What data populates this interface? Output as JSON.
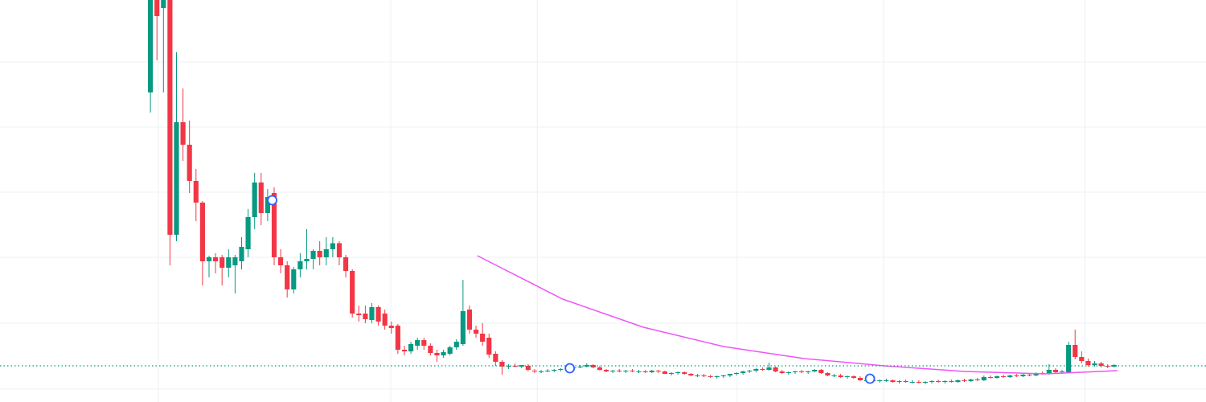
{
  "chart_data": {
    "type": "candlestick",
    "up_color": "#089981",
    "down_color": "#f23645",
    "grid": true,
    "grid_color": "#eef0f4",
    "xlim": [
      -23.1,
      162.1
    ],
    "ylim": [
      0,
      100
    ],
    "xticks": [
      1.2,
      36.9,
      59.4,
      90.1,
      112.6,
      143.5
    ],
    "yticks": [
      3.2,
      19.6,
      36,
      52.2,
      68.4,
      84.6
    ],
    "candles": [
      [
        77,
        110,
        72,
        103
      ],
      [
        104,
        110,
        85,
        96
      ],
      [
        98,
        106,
        77,
        100
      ],
      [
        110,
        112,
        34,
        41.6
      ],
      [
        41.6,
        87,
        40,
        69.6
      ],
      [
        69.6,
        78,
        60,
        64
      ],
      [
        64,
        70,
        52,
        55
      ],
      [
        55,
        58,
        45,
        49.6
      ],
      [
        49.6,
        50,
        29,
        35
      ],
      [
        35,
        36.4,
        31,
        36
      ],
      [
        36,
        37,
        32,
        35
      ],
      [
        36,
        36.6,
        29,
        33.4
      ],
      [
        33.4,
        38,
        31,
        36
      ],
      [
        34,
        36.6,
        27,
        36
      ],
      [
        35,
        41,
        33,
        38.6
      ],
      [
        38,
        48,
        36,
        46
      ],
      [
        46,
        57,
        43,
        54.6
      ],
      [
        54.6,
        57,
        44,
        47
      ],
      [
        47,
        53,
        45,
        51
      ],
      [
        52,
        53.4,
        34,
        36
      ],
      [
        36,
        38,
        32,
        34
      ],
      [
        34,
        35,
        26,
        28
      ],
      [
        28,
        33.6,
        27,
        33
      ],
      [
        33,
        37,
        31,
        35
      ],
      [
        35,
        43,
        33,
        35.6
      ],
      [
        35.6,
        38,
        33,
        37.6
      ],
      [
        37.6,
        40,
        34,
        36
      ],
      [
        36,
        41,
        34,
        38
      ],
      [
        38,
        41,
        36,
        39.5
      ],
      [
        39.5,
        40,
        34,
        36
      ],
      [
        36,
        36.6,
        31,
        32.6
      ],
      [
        32.6,
        33,
        21,
        22
      ],
      [
        22,
        24,
        20,
        21.6
      ],
      [
        22,
        24,
        19.6,
        20.6
      ],
      [
        20.4,
        24.6,
        19.6,
        23.6
      ],
      [
        23.6,
        24,
        19,
        20
      ],
      [
        22,
        23,
        18,
        19
      ],
      [
        19,
        20,
        17,
        18.4
      ],
      [
        19,
        19.4,
        12,
        13
      ],
      [
        13,
        14,
        11.6,
        12.6
      ],
      [
        12.6,
        15,
        12,
        14.4
      ],
      [
        14,
        16,
        13,
        15.4
      ],
      [
        15.4,
        16,
        13,
        14
      ],
      [
        14,
        14.6,
        11.6,
        12.2
      ],
      [
        12.2,
        13,
        10,
        11.6
      ],
      [
        11.6,
        13,
        11,
        12.4
      ],
      [
        12,
        14,
        11.6,
        13.6
      ],
      [
        13.6,
        15.6,
        13,
        15
      ],
      [
        14.4,
        30.4,
        14,
        22.6
      ],
      [
        23,
        24,
        17,
        18
      ],
      [
        18,
        19,
        16,
        17
      ],
      [
        17,
        19.6,
        14,
        15
      ],
      [
        16,
        17,
        11,
        11.8
      ],
      [
        12,
        12.6,
        9,
        10
      ],
      [
        10,
        10.4,
        6.8,
        8.8
      ],
      [
        8.8,
        9.4,
        8.2,
        9.0
      ],
      [
        9.0,
        9.6,
        8.6,
        8.8
      ],
      [
        8.8,
        9.2,
        8.4,
        9.2
      ],
      [
        9.0,
        9.4,
        7.6,
        8.0
      ],
      [
        7.8,
        8.2,
        7.2,
        7.6
      ],
      [
        7.6,
        8.0,
        7.2,
        7.6
      ],
      [
        7.6,
        8.2,
        7.4,
        7.8
      ],
      [
        7.8,
        8.2,
        7.4,
        8.0
      ],
      [
        8.0,
        8.4,
        7.6,
        8.2
      ],
      [
        8.2,
        8.6,
        7.8,
        8.4
      ],
      [
        8.4,
        8.8,
        8.0,
        8.6
      ],
      [
        8.6,
        9.2,
        8.4,
        8.8
      ],
      [
        8.8,
        9.6,
        8.6,
        9.2
      ],
      [
        9.2,
        9.4,
        8.4,
        8.6
      ],
      [
        8.6,
        9.0,
        7.8,
        8.0
      ],
      [
        8.0,
        8.2,
        7.4,
        7.6
      ],
      [
        7.6,
        8.0,
        7.2,
        7.8
      ],
      [
        7.8,
        8.2,
        7.4,
        7.6
      ],
      [
        7.6,
        8.0,
        7.2,
        7.8
      ],
      [
        7.8,
        8.2,
        7.4,
        7.6
      ],
      [
        7.6,
        8.0,
        7.2,
        7.6
      ],
      [
        7.6,
        8.0,
        7.2,
        7.4
      ],
      [
        7.4,
        8.0,
        7.2,
        7.8
      ],
      [
        7.8,
        8.0,
        7.2,
        7.6
      ],
      [
        7.6,
        7.8,
        7.0,
        7.0
      ],
      [
        7.0,
        7.4,
        6.6,
        7.2
      ],
      [
        7.2,
        7.6,
        6.8,
        7.4
      ],
      [
        7.4,
        7.6,
        6.8,
        7.0
      ],
      [
        7.0,
        7.2,
        6.4,
        6.6
      ],
      [
        6.6,
        7.0,
        6.2,
        6.6
      ],
      [
        6.6,
        7.0,
        6.2,
        6.4
      ],
      [
        6.4,
        6.8,
        6.0,
        6.2
      ],
      [
        6.2,
        6.6,
        5.8,
        6.4
      ],
      [
        6.4,
        6.8,
        6.0,
        6.6
      ],
      [
        6.6,
        7.0,
        6.2,
        7.0
      ],
      [
        7.0,
        7.4,
        6.6,
        7.2
      ],
      [
        7.2,
        7.8,
        6.8,
        7.6
      ],
      [
        7.6,
        8.0,
        7.2,
        7.8
      ],
      [
        7.8,
        8.4,
        7.4,
        8.2
      ],
      [
        8.2,
        8.6,
        7.8,
        8.0
      ],
      [
        8.0,
        9.8,
        7.8,
        8.6
      ],
      [
        8.6,
        8.8,
        7.4,
        7.6
      ],
      [
        7.6,
        8.0,
        7.0,
        7.2
      ],
      [
        7.2,
        7.6,
        6.8,
        7.4
      ],
      [
        7.4,
        7.8,
        7.0,
        7.6
      ],
      [
        7.6,
        8.0,
        7.2,
        7.4
      ],
      [
        7.4,
        7.8,
        7.0,
        7.6
      ],
      [
        7.6,
        8.2,
        7.4,
        8.0
      ],
      [
        8.0,
        8.2,
        7.0,
        7.2
      ],
      [
        7.2,
        7.4,
        6.4,
        6.6
      ],
      [
        6.6,
        7.0,
        6.2,
        6.6
      ],
      [
        6.6,
        7.0,
        6.0,
        6.2
      ],
      [
        6.2,
        6.6,
        5.8,
        6.4
      ],
      [
        6.4,
        6.6,
        5.8,
        6.0
      ],
      [
        6.0,
        6.4,
        5.2,
        5.4
      ],
      [
        5.4,
        5.8,
        5.0,
        5.4
      ],
      [
        5.4,
        5.8,
        5.0,
        5.2
      ],
      [
        5.2,
        5.6,
        4.8,
        5.4
      ],
      [
        5.4,
        5.8,
        5.0,
        5.4
      ],
      [
        5.4,
        5.6,
        4.8,
        5.0
      ],
      [
        5.0,
        5.4,
        4.6,
        5.2
      ],
      [
        5.2,
        5.6,
        4.8,
        5.0
      ],
      [
        5.0,
        5.4,
        4.6,
        5.0
      ],
      [
        5.0,
        5.4,
        4.6,
        4.8
      ],
      [
        4.8,
        5.2,
        4.4,
        5.0
      ],
      [
        5.0,
        5.4,
        4.6,
        5.2
      ],
      [
        5.2,
        5.6,
        4.8,
        5.0
      ],
      [
        5.0,
        5.4,
        4.6,
        5.2
      ],
      [
        5.2,
        5.6,
        4.8,
        5.0
      ],
      [
        5.0,
        5.6,
        4.8,
        5.4
      ],
      [
        5.4,
        5.8,
        5.0,
        5.2
      ],
      [
        5.2,
        5.8,
        5.0,
        5.6
      ],
      [
        5.6,
        6.0,
        5.2,
        5.4
      ],
      [
        5.4,
        6.6,
        5.2,
        6.2
      ],
      [
        6.2,
        6.6,
        5.8,
        6.0
      ],
      [
        6.0,
        6.6,
        5.8,
        6.4
      ],
      [
        6.4,
        6.8,
        6.0,
        6.2
      ],
      [
        6.2,
        6.8,
        6.0,
        6.6
      ],
      [
        6.6,
        7.0,
        6.2,
        6.4
      ],
      [
        6.4,
        7.0,
        6.2,
        6.8
      ],
      [
        6.8,
        7.2,
        6.4,
        6.6
      ],
      [
        6.6,
        7.4,
        6.4,
        7.2
      ],
      [
        7.2,
        7.6,
        6.8,
        7.0
      ],
      [
        7.0,
        9.4,
        6.8,
        8.0
      ],
      [
        8.0,
        8.4,
        7.0,
        7.4
      ],
      [
        7.4,
        8.0,
        7.0,
        7.6
      ],
      [
        7.4,
        15,
        7.2,
        14.2
      ],
      [
        14.2,
        18,
        10.6,
        11.2
      ],
      [
        11.2,
        12.6,
        9.6,
        10.2
      ],
      [
        10.2,
        10.8,
        8.8,
        9.2
      ],
      [
        9.2,
        10.2,
        8.8,
        9.6
      ],
      [
        9.6,
        10.0,
        8.6,
        9.0
      ],
      [
        9.0,
        9.4,
        8.4,
        8.8
      ],
      [
        8.8,
        9.4,
        8.6,
        9.2
      ]
    ],
    "average_line": {
      "color": "#ee55f7",
      "x": [
        50.2,
        63.3,
        75.7,
        88,
        100.4,
        112.7,
        125,
        137.4,
        148.5
      ],
      "values": [
        36.4,
        25.6,
        18.6,
        13.8,
        10.8,
        9,
        7.6,
        7,
        7.8
      ]
    },
    "last_price": 9,
    "last_price_color": "#089981",
    "markers": [
      {
        "x": 18.7,
        "y": 50.2
      },
      {
        "x": 64.4,
        "y": 8.4
      },
      {
        "x": 110.5,
        "y": 5.8
      }
    ],
    "marker_color": "#2962ff"
  }
}
